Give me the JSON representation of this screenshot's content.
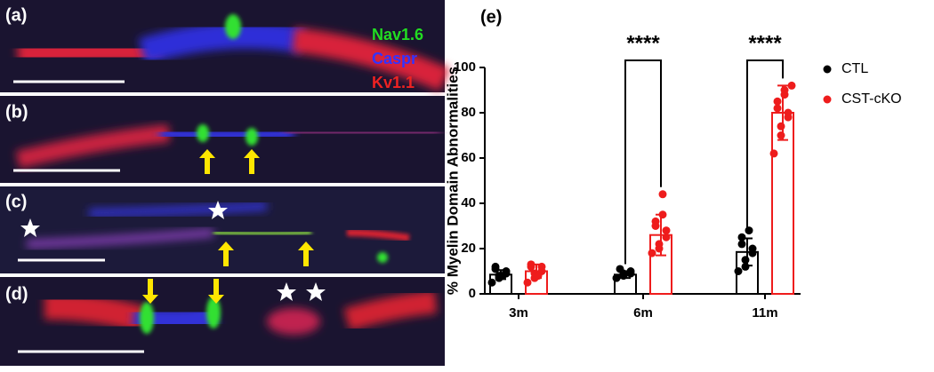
{
  "panels": [
    {
      "label": "(a)"
    },
    {
      "label": "(b)"
    },
    {
      "label": "(c)"
    },
    {
      "label": "(d)"
    }
  ],
  "channel_labels": [
    {
      "text": "Nav1.6",
      "color": "#22dd22"
    },
    {
      "text": "Caspr",
      "color": "#3333ff"
    },
    {
      "text": "Kv1.1",
      "color": "#ee2222"
    }
  ],
  "chart_data": {
    "type": "bar",
    "panel_label": "(e)",
    "ylabel": "% Myelin Domain Abnormalities",
    "categories": [
      "3m",
      "6m",
      "11m"
    ],
    "ylim": [
      0,
      100
    ],
    "yticks": [
      0,
      20,
      40,
      60,
      80,
      100
    ],
    "legend": "top-right",
    "series": [
      {
        "name": "CTL",
        "color": "#000000",
        "values": [
          8.5,
          8.5,
          18.5
        ],
        "errors": [
          2,
          1.5,
          6
        ],
        "points": [
          [
            5,
            7,
            8,
            9,
            10,
            11,
            12,
            8
          ],
          [
            7,
            8,
            9,
            9,
            10,
            11
          ],
          [
            10,
            12,
            15,
            18,
            20,
            22,
            25,
            28
          ]
        ]
      },
      {
        "name": "CST-cKO",
        "color": "#ee1c1c",
        "values": [
          10,
          26,
          80
        ],
        "errors": [
          3,
          9,
          12
        ],
        "points": [
          [
            5,
            7,
            9,
            10,
            12,
            12,
            13,
            8
          ],
          [
            18,
            20,
            22,
            25,
            28,
            30,
            32,
            35,
            44
          ],
          [
            62,
            70,
            74,
            78,
            80,
            82,
            85,
            88,
            90,
            92
          ]
        ]
      }
    ],
    "annotations": [
      "****",
      "****"
    ]
  }
}
